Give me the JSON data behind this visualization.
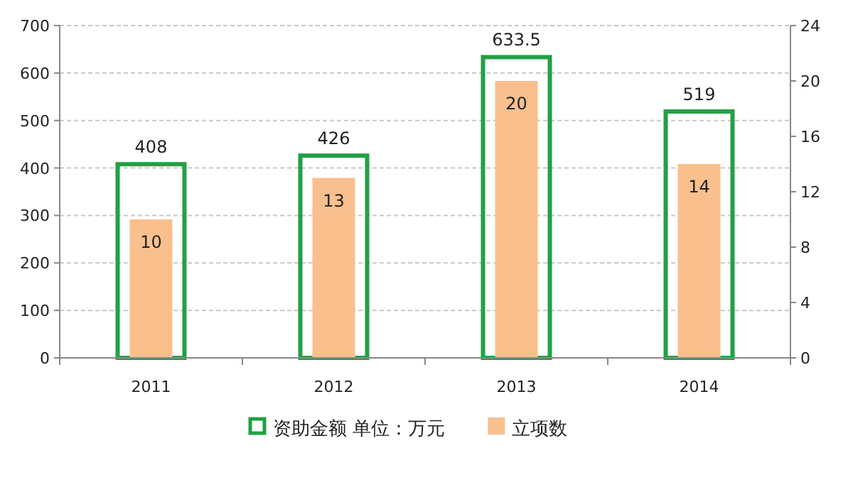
{
  "chart_data": {
    "type": "bar",
    "categories": [
      "2011",
      "2012",
      "2013",
      "2014"
    ],
    "series": [
      {
        "name": "资助金额 单位：万元",
        "color": "#22a046",
        "values": [
          408,
          426,
          633.5,
          519
        ]
      },
      {
        "name": "立项数",
        "color": "#f9c08e",
        "axis": "y2",
        "values": [
          10,
          13,
          20,
          14
        ]
      }
    ],
    "ylim": [
      0,
      700
    ],
    "yticks": [
      0,
      100,
      200,
      300,
      400,
      500,
      600,
      700
    ],
    "y2lim": [
      0,
      24
    ],
    "y2ticks": [
      0,
      4,
      8,
      12,
      16,
      20,
      24
    ],
    "grid": "y",
    "legend": "bottom",
    "data_labels": true
  }
}
